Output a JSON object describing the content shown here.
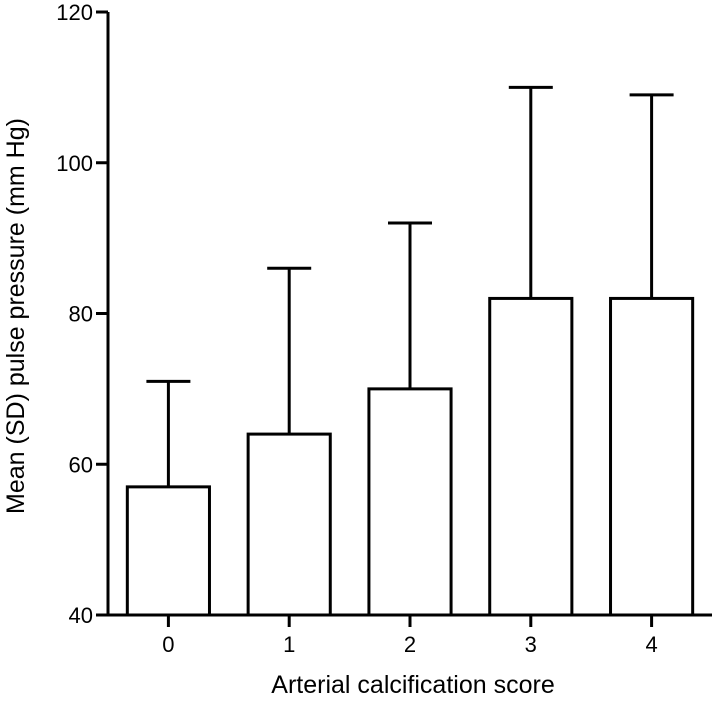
{
  "chart_data": {
    "type": "bar",
    "title": "",
    "xlabel": "Arterial calcification score",
    "ylabel": "Mean (SD) pulse pressure (mm Hg)",
    "categories": [
      "0",
      "1",
      "2",
      "3",
      "4"
    ],
    "values": [
      57,
      64,
      70,
      82,
      82
    ],
    "error_upper": [
      71,
      86,
      92,
      110,
      109
    ],
    "error_type": "SD, upper only",
    "ylim": [
      40,
      120
    ],
    "yticks": [
      40,
      60,
      80,
      100,
      120
    ],
    "grid": false,
    "legend": "none",
    "colors": {
      "bar_fill": "#ffffff",
      "bar_stroke": "#000000",
      "axis": "#000000"
    }
  }
}
